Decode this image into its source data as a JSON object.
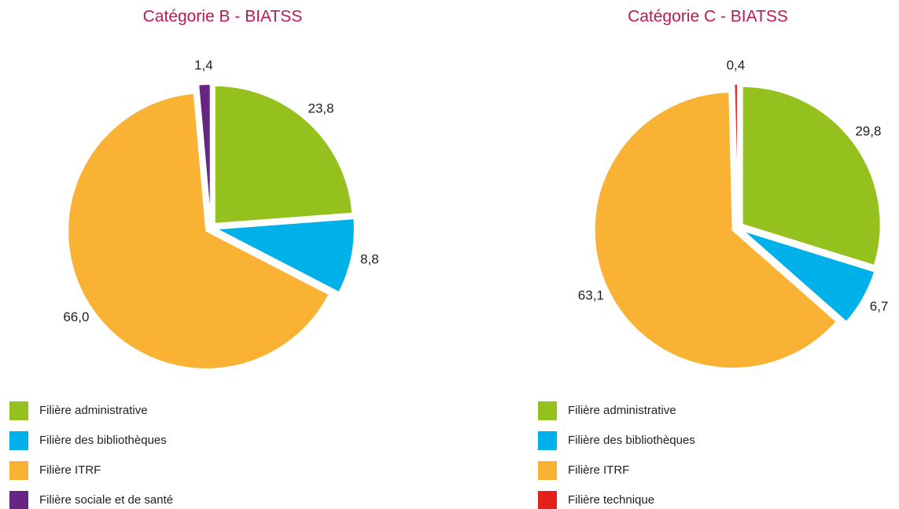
{
  "chart_data": [
    {
      "type": "pie",
      "title": "Catégorie B - BIATSS",
      "categories": [
        "Filière administrative",
        "Filière des bibliothèques",
        "Filière ITRF",
        "Filière sociale et de santé"
      ],
      "values": [
        23.8,
        8.8,
        66.0,
        1.4
      ],
      "value_labels": [
        "23,8",
        "8,8",
        "66,0",
        "1,4"
      ],
      "colors": [
        "#95c11f",
        "#00b0e8",
        "#f9b233",
        "#662483"
      ]
    },
    {
      "type": "pie",
      "title": "Catégorie C - BIATSS",
      "categories": [
        "Filière administrative",
        "Filière des bibliothèques",
        "Filière ITRF",
        "Filière technique"
      ],
      "values": [
        29.8,
        6.7,
        63.1,
        0.4
      ],
      "value_labels": [
        "29,8",
        "6,7",
        "63,1",
        "0,4"
      ],
      "colors": [
        "#95c11f",
        "#00b0e8",
        "#f9b233",
        "#e3201b"
      ]
    }
  ]
}
